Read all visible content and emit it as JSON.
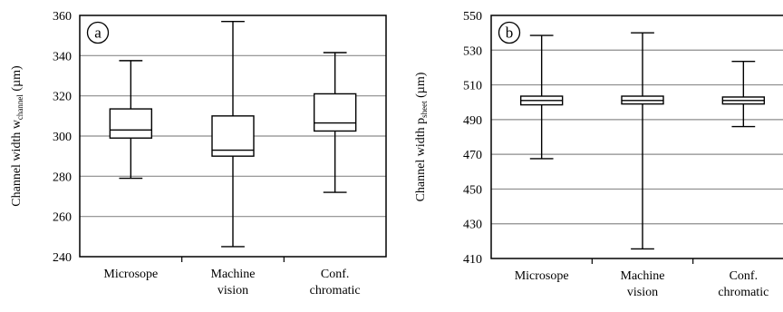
{
  "chart_data": [
    {
      "type": "boxplot",
      "panel_label": "a",
      "ylabel": {
        "main": "Channel width w",
        "sub": "channel",
        "unit": "(µm)"
      },
      "ylim": [
        240,
        360
      ],
      "yticks": [
        240,
        260,
        280,
        300,
        320,
        340,
        360
      ],
      "grid": true,
      "categories": [
        {
          "lines": [
            "Microsope"
          ]
        },
        {
          "lines": [
            "Machine",
            "vision"
          ]
        },
        {
          "lines": [
            "Conf.",
            "chromatic"
          ]
        }
      ],
      "boxes": [
        {
          "min": 279,
          "q1": 299,
          "median": 303,
          "q3": 313.5,
          "max": 337.5
        },
        {
          "min": 245,
          "q1": 290,
          "median": 293,
          "q3": 310,
          "max": 357
        },
        {
          "min": 272,
          "q1": 302.5,
          "median": 306.5,
          "q3": 321,
          "max": 341.5
        }
      ]
    },
    {
      "type": "boxplot",
      "panel_label": "b",
      "ylabel": {
        "main": "Channel width p",
        "sub": "sheet",
        "unit": "(µm)"
      },
      "ylim": [
        410,
        550
      ],
      "yticks": [
        410,
        430,
        450,
        470,
        490,
        510,
        530,
        550
      ],
      "grid": true,
      "categories": [
        {
          "lines": [
            "Microsope"
          ]
        },
        {
          "lines": [
            "Machine",
            "vision"
          ]
        },
        {
          "lines": [
            "Conf.",
            "chromatic"
          ]
        }
      ],
      "boxes": [
        {
          "min": 467.5,
          "q1": 498.5,
          "median": 501,
          "q3": 503.5,
          "max": 538.5
        },
        {
          "min": 415.5,
          "q1": 499,
          "median": 501,
          "q3": 503.5,
          "max": 540
        },
        {
          "min": 486,
          "q1": 499,
          "median": 501,
          "q3": 503,
          "max": 523.5
        }
      ]
    }
  ]
}
